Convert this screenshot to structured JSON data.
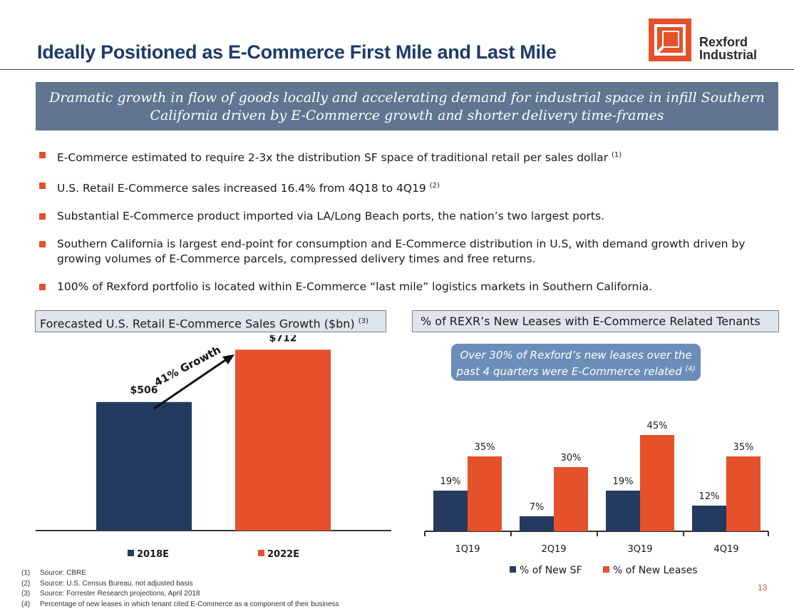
{
  "header": {
    "title": "Ideally Positioned as E-Commerce First Mile and Last Mile",
    "logo": {
      "line1": "Rexford",
      "line2": "Industrial",
      "icon": "rexford-logo-icon"
    }
  },
  "banner": {
    "line1": "Dramatic growth in flow of goods locally and accelerating demand for industrial space in infill Southern",
    "line2": "California driven by E-Commerce growth and shorter delivery time-frames"
  },
  "bullets": [
    {
      "text": "E-Commerce estimated to require 2-3x the distribution SF space of traditional retail per sales dollar ",
      "sup": "(1)"
    },
    {
      "text": "U.S. Retail E-Commerce sales increased 16.4% from 4Q18 to 4Q19 ",
      "sup": "(2)"
    },
    {
      "text": "Substantial E-Commerce product imported via LA/Long Beach ports, the nation’s two largest ports.",
      "sup": ""
    },
    {
      "text": "Southern California is largest end-point for consumption and E-Commerce distribution in U.S, with demand growth driven by growing volumes of E-Commerce parcels, compressed delivery times and free returns.",
      "sup": ""
    },
    {
      "text": "100% of Rexford portfolio is located within E-Commerce “last mile” logistics markets in Southern California.",
      "sup": ""
    }
  ],
  "left_section": {
    "title": "Forecasted U.S. Retail E-Commerce Sales Growth ($bn) ",
    "sup": "(3)"
  },
  "right_section": {
    "title": "% of REXR’s New Leases with E-Commerce Related Tenants"
  },
  "callout": {
    "line1": "Over 30% of Rexford’s new leases over the",
    "line2": "past 4 quarters were E-Commerce related ",
    "sup": "(4)"
  },
  "growth_annotation": "41% Growth",
  "colors": {
    "navy": "#243a5e",
    "orange": "#e4512b",
    "title": "#1e3a6b",
    "banner": "#5f7590",
    "callout": "#6b8eb8"
  },
  "chart_data": [
    {
      "type": "bar",
      "categories": [
        "2018E",
        "2022E"
      ],
      "values": [
        506,
        712
      ],
      "labels": [
        "$506",
        "$712"
      ],
      "colors": [
        "#243a5e",
        "#e4512b"
      ],
      "ylim": [
        0,
        800
      ],
      "legend": [
        "2018E",
        "2022E"
      ],
      "legend_placement": "bottom",
      "grid": false
    },
    {
      "type": "bar",
      "categories": [
        "1Q19",
        "2Q19",
        "3Q19",
        "4Q19"
      ],
      "series": [
        {
          "name": "% of New SF",
          "values": [
            19,
            7,
            19,
            12
          ],
          "labels": [
            "19%",
            "7%",
            "19%",
            "12%"
          ],
          "color": "#243a5e"
        },
        {
          "name": "% of New Leases",
          "values": [
            35,
            30,
            45,
            35
          ],
          "labels": [
            "35%",
            "30%",
            "45%",
            "35%"
          ],
          "color": "#e4512b"
        }
      ],
      "ylim": [
        0,
        50
      ],
      "legend_placement": "bottom",
      "grid": false
    }
  ],
  "footnotes": [
    {
      "num": "(1)",
      "text": "Source: CBRE"
    },
    {
      "num": "(2)",
      "text": "Source: U.S. Census Bureau, not adjusted basis"
    },
    {
      "num": "(3)",
      "text": "Source: Forrester Research projections, April 2018"
    },
    {
      "num": "(4)",
      "text": "Percentage of new leases in which tenant cited E-Commerce as a component of their business"
    }
  ],
  "page_number": "13"
}
